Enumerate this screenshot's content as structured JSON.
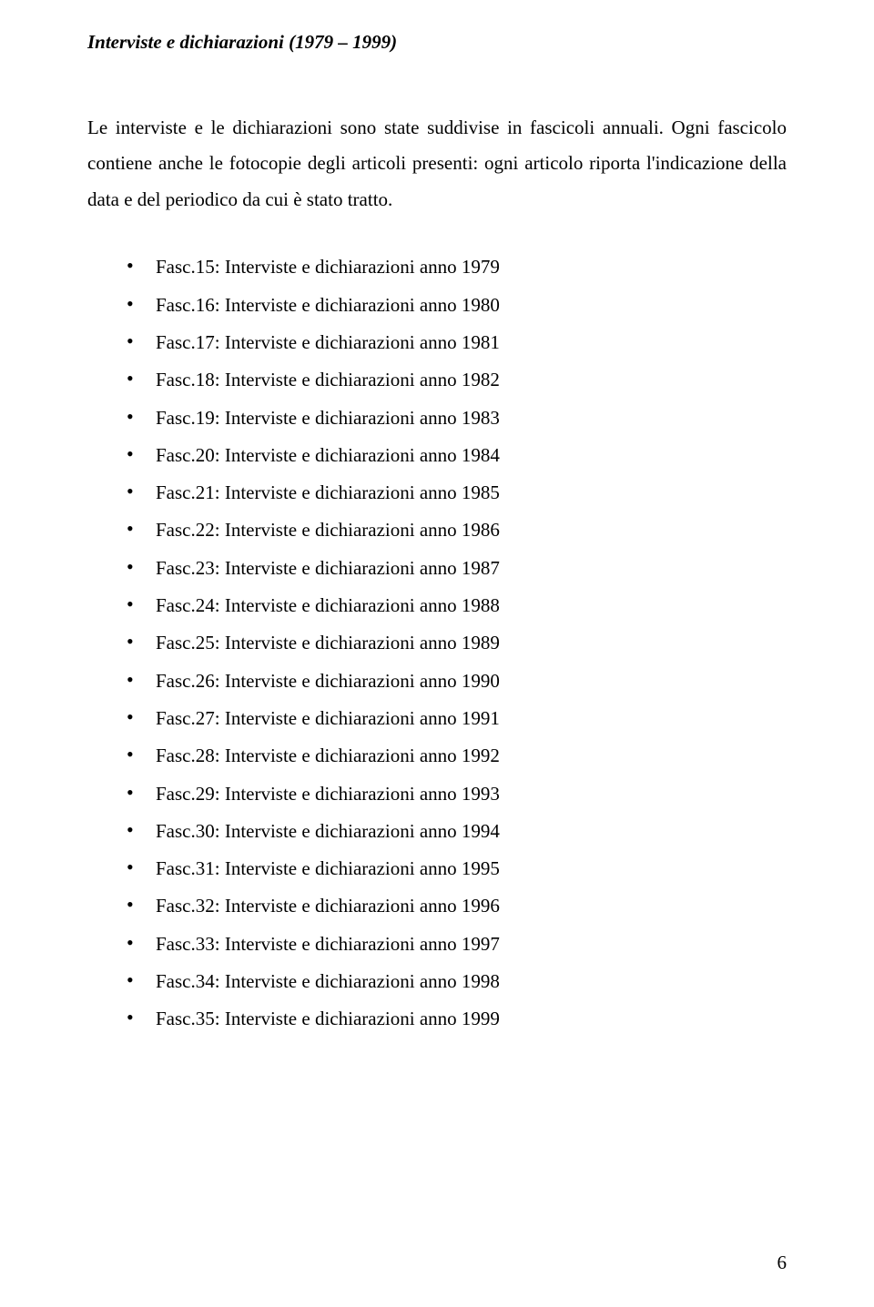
{
  "title": "Interviste e dichiarazioni (1979 – 1999)",
  "intro": "Le interviste e le dichiarazioni sono state suddivise in fascicoli annuali. Ogni fascicolo contiene anche le fotocopie degli articoli presenti: ogni articolo riporta l'indicazione della data e del periodico da cui è stato tratto.",
  "items": [
    "Fasc.15: Interviste e dichiarazioni anno 1979",
    "Fasc.16: Interviste e dichiarazioni anno 1980",
    "Fasc.17: Interviste e dichiarazioni anno 1981",
    "Fasc.18: Interviste e dichiarazioni anno 1982",
    "Fasc.19: Interviste e dichiarazioni anno 1983",
    "Fasc.20: Interviste e dichiarazioni anno 1984",
    "Fasc.21: Interviste e dichiarazioni anno 1985",
    "Fasc.22: Interviste e dichiarazioni anno 1986",
    "Fasc.23: Interviste e dichiarazioni anno 1987",
    "Fasc.24: Interviste e dichiarazioni anno 1988",
    "Fasc.25: Interviste e dichiarazioni anno 1989",
    "Fasc.26: Interviste e dichiarazioni anno 1990",
    "Fasc.27: Interviste e dichiarazioni anno 1991",
    "Fasc.28: Interviste e dichiarazioni anno 1992",
    "Fasc.29: Interviste e dichiarazioni anno 1993",
    "Fasc.30: Interviste e dichiarazioni anno 1994",
    "Fasc.31: Interviste e dichiarazioni anno 1995",
    "Fasc.32: Interviste e dichiarazioni anno 1996",
    "Fasc.33: Interviste e dichiarazioni anno 1997",
    "Fasc.34: Interviste e dichiarazioni anno 1998",
    "Fasc.35: Interviste e dichiarazioni anno 1999"
  ],
  "page_number": "6"
}
